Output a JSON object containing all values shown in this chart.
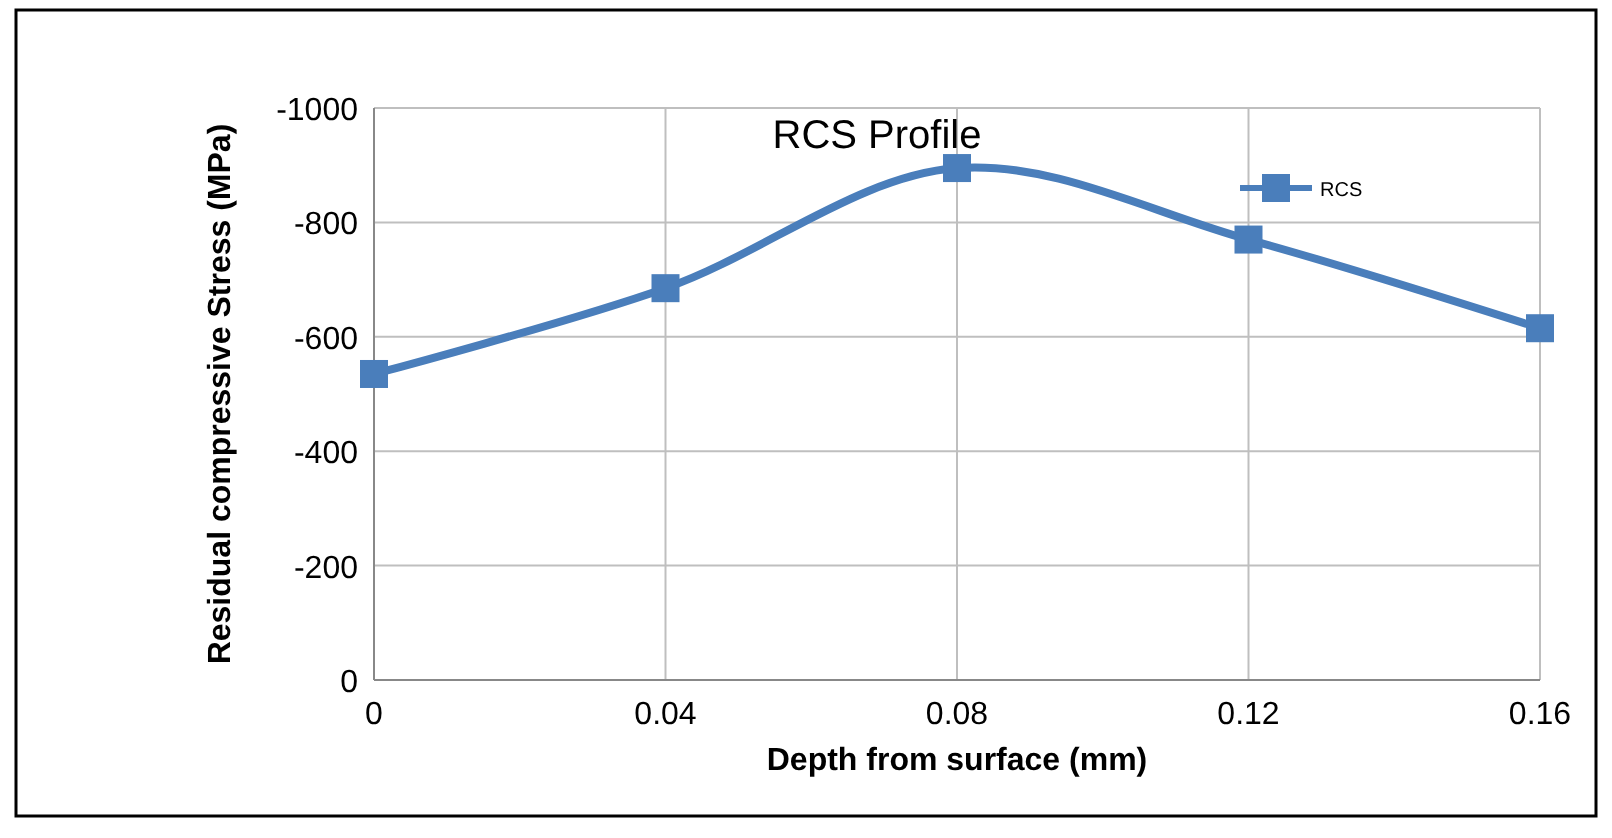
{
  "chart_data": {
    "type": "line",
    "title": "RCS Profile",
    "xlabel": "Depth from surface (mm)",
    "ylabel": "Residual compressive Stress (MPa)",
    "x": [
      0,
      0.04,
      0.08,
      0.12,
      0.16
    ],
    "series": [
      {
        "name": "RCS",
        "color": "#4a7ebb",
        "values": [
          -535,
          -685,
          -895,
          -770,
          -615
        ]
      }
    ],
    "xlim": [
      0,
      0.16
    ],
    "xticks": [
      0,
      0.04,
      0.08,
      0.12,
      0.16
    ],
    "ylim": [
      0,
      -1000
    ],
    "yticks": [
      0,
      -200,
      -400,
      -600,
      -800,
      -1000
    ],
    "grid": true,
    "legend": "top right",
    "marker": "square",
    "line_style": "solid"
  }
}
